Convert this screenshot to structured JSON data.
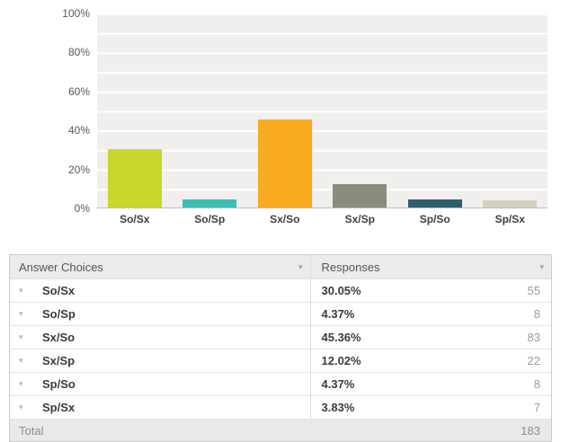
{
  "chart_data": {
    "type": "bar",
    "categories": [
      "So/Sx",
      "So/Sp",
      "Sx/So",
      "Sx/Sp",
      "Sp/So",
      "Sp/Sx"
    ],
    "values": [
      30.05,
      4.37,
      45.36,
      12.02,
      4.37,
      3.83
    ],
    "counts": [
      55,
      8,
      83,
      22,
      8,
      7
    ],
    "bar_colors": [
      "#c9d62e",
      "#3cbdb2",
      "#f8ab20",
      "#8a8d7b",
      "#2e5e6f",
      "#d3d0c0"
    ],
    "title": "",
    "xlabel": "",
    "ylabel": "",
    "ylim": [
      0,
      100
    ],
    "y_tick_labels": [
      "100%",
      "80%",
      "60%",
      "40%",
      "20%",
      "0%"
    ],
    "grid": true,
    "legend_position": "none",
    "plot_background": "#f0efed"
  },
  "icons": {
    "header_sort_icon": "▾",
    "row_caret_icon": "▾"
  },
  "table": {
    "headers": {
      "answer_choices": "Answer Choices",
      "responses": "Responses"
    },
    "rows": [
      {
        "label": "So/Sx",
        "percent": "30.05%",
        "count": "55"
      },
      {
        "label": "So/Sp",
        "percent": "4.37%",
        "count": "8"
      },
      {
        "label": "Sx/So",
        "percent": "45.36%",
        "count": "83"
      },
      {
        "label": "Sx/Sp",
        "percent": "12.02%",
        "count": "22"
      },
      {
        "label": "Sp/So",
        "percent": "4.37%",
        "count": "8"
      },
      {
        "label": "Sp/Sx",
        "percent": "3.83%",
        "count": "7"
      }
    ],
    "total_label": "Total",
    "total_value": "183"
  }
}
